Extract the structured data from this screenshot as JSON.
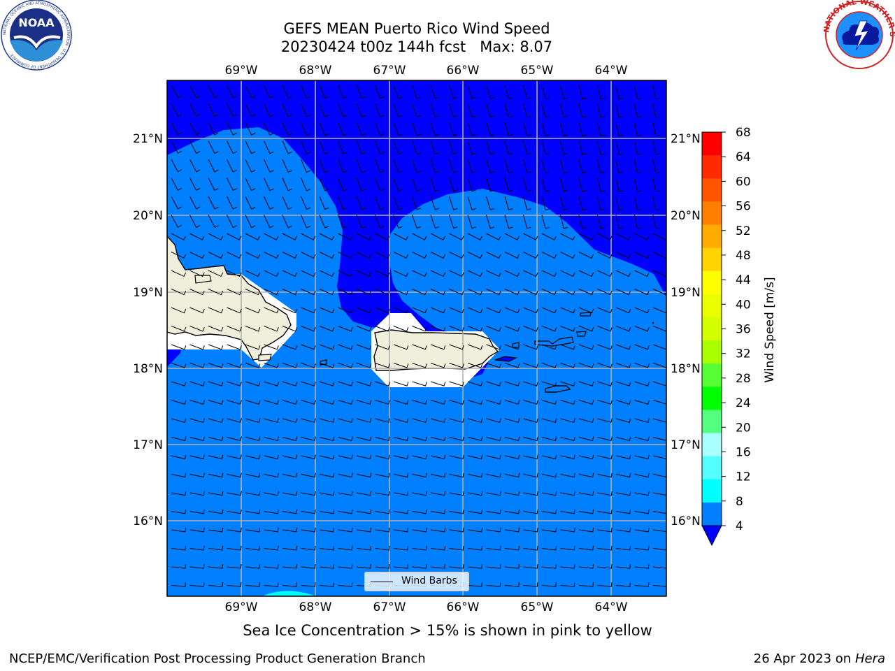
{
  "title": {
    "line1": "GEFS MEAN Puerto Rico Wind Speed",
    "line2": "20230424 t00z 144h fcst   Max: 8.07"
  },
  "logos": {
    "left_text": "NOAA",
    "left_ring_text": "NATIONAL OCEANIC AND ATMOSPHERIC ADMINISTRATION · U.S. DEPARTMENT OF COMMERCE",
    "right_ring_text": "NATIONAL WEATHER SERVICE"
  },
  "map": {
    "longitude_ticks": [
      "69°W",
      "68°W",
      "67°W",
      "66°W",
      "65°W",
      "64°W"
    ],
    "latitude_ticks": [
      "21°N",
      "20°N",
      "19°N",
      "18°N",
      "17°N",
      "16°N"
    ],
    "legend_label": "Wind Barbs",
    "colors": {
      "dark_blue": "#0000ff",
      "mid_blue": "#0080ff",
      "cyan": "#00ffff",
      "land": "#efefdc",
      "grid": "#b0b0b0"
    }
  },
  "colorbar": {
    "label": "Wind Speed [m/s]",
    "ticks": [
      "68",
      "64",
      "60",
      "56",
      "52",
      "48",
      "44",
      "40",
      "36",
      "32",
      "28",
      "24",
      "20",
      "16",
      "12",
      "8",
      "4"
    ],
    "colors": [
      "#ff0000",
      "#ff2a00",
      "#ff5500",
      "#ff8000",
      "#ffaa00",
      "#ffd400",
      "#ffff00",
      "#eaff00",
      "#d4ff00",
      "#aaff00",
      "#55ff33",
      "#00ff00",
      "#55ff80",
      "#aaffff",
      "#55ffff",
      "#00ffff",
      "#0080ff"
    ],
    "under_color": "#0000ff"
  },
  "subtitle": "Sea Ice Concentration > 15% is shown in pink to yellow",
  "footer": {
    "left": "NCEP/EMC/Verification Post Processing Product Generation Branch",
    "right_date": "26 Apr 2023 on ",
    "right_host": "Hera"
  }
}
